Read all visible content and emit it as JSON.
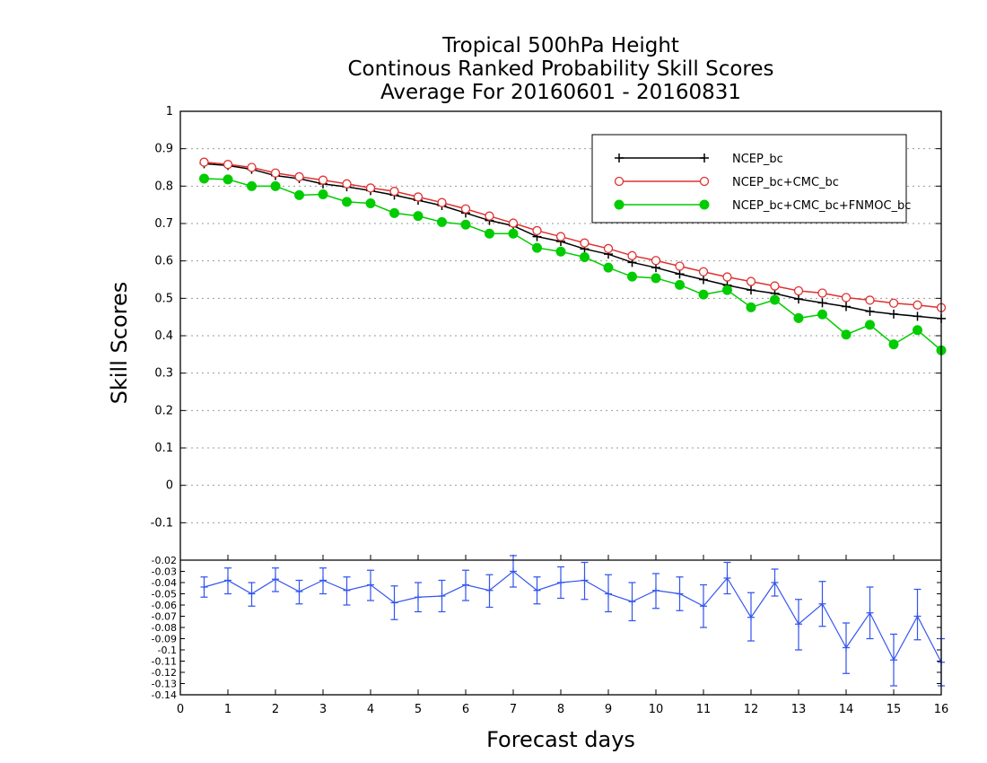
{
  "title_lines": [
    "Tropical 500hPa Height",
    "Continous Ranked Probability Skill Scores",
    "Average For 20160601 - 20160831"
  ],
  "colors": {
    "ncep": "#000000",
    "ncep_cmc": "#e03030",
    "ncep_cmc_fnmoc": "#00cc00",
    "difference": "#3355ee",
    "grid": "#999999"
  },
  "chart_data": [
    {
      "type": "line",
      "title": "Tropical 500hPa Height / Continous Ranked Probability Skill Scores / Average For 20160601 - 20160831",
      "ylabel": "Skill Scores",
      "xlabel": "",
      "xlim": [
        0,
        16
      ],
      "ylim": [
        -0.2,
        1.0
      ],
      "yticks": [
        "1",
        "0.9",
        "0.8",
        "0.7",
        "0.6",
        "0.5",
        "0.4",
        "0.3",
        "0.2",
        "0.1",
        "0",
        "-0.1"
      ],
      "grid": true,
      "legend_position": "top-right",
      "x": [
        0.5,
        1,
        1.5,
        2,
        2.5,
        3,
        3.5,
        4,
        4.5,
        5,
        5.5,
        6,
        6.5,
        7,
        7.5,
        8,
        8.5,
        9,
        9.5,
        10,
        10.5,
        11,
        11.5,
        12,
        12.5,
        13,
        13.5,
        14,
        14.5,
        15,
        15.5,
        16
      ],
      "series": [
        {
          "name": "NCEP_bc",
          "marker": "plus",
          "values": [
            0.86,
            0.855,
            0.845,
            0.828,
            0.82,
            0.806,
            0.798,
            0.788,
            0.776,
            0.762,
            0.748,
            0.728,
            0.708,
            0.694,
            0.665,
            0.652,
            0.632,
            0.618,
            0.596,
            0.582,
            0.565,
            0.55,
            0.535,
            0.522,
            0.513,
            0.498,
            0.488,
            0.478,
            0.465,
            0.458,
            0.452,
            0.446
          ]
        },
        {
          "name": "NCEP_bc+CMC_bc",
          "marker": "open-circle",
          "values": [
            0.864,
            0.858,
            0.85,
            0.835,
            0.825,
            0.816,
            0.806,
            0.795,
            0.786,
            0.771,
            0.756,
            0.739,
            0.72,
            0.701,
            0.681,
            0.665,
            0.648,
            0.633,
            0.614,
            0.601,
            0.586,
            0.571,
            0.557,
            0.545,
            0.533,
            0.52,
            0.514,
            0.502,
            0.495,
            0.487,
            0.482,
            0.475
          ]
        },
        {
          "name": "NCEP_bc+CMC_bc+FNMOC_bc",
          "marker": "filled-circle",
          "values": [
            0.82,
            0.818,
            0.8,
            0.8,
            0.776,
            0.778,
            0.758,
            0.754,
            0.728,
            0.72,
            0.704,
            0.697,
            0.673,
            0.673,
            0.635,
            0.625,
            0.61,
            0.582,
            0.558,
            0.554,
            0.536,
            0.51,
            0.522,
            0.476,
            0.496,
            0.447,
            0.457,
            0.403,
            0.429,
            0.377,
            0.415,
            0.361
          ]
        }
      ]
    },
    {
      "type": "line",
      "title": "",
      "xlabel": "Forecast days",
      "ylabel": "",
      "xlim": [
        0,
        16
      ],
      "ylim": [
        -0.14,
        -0.02
      ],
      "xticks": [
        "0",
        "1",
        "2",
        "3",
        "4",
        "5",
        "6",
        "7",
        "8",
        "9",
        "10",
        "11",
        "12",
        "13",
        "14",
        "15",
        "16"
      ],
      "yticks": [
        "-0.02",
        "-0.03",
        "-0.04",
        "-0.05",
        "-0.06",
        "-0.07",
        "-0.08",
        "-0.09",
        "-0.1",
        "-0.11",
        "-0.12",
        "-0.13",
        "-0.14"
      ],
      "grid": false,
      "x": [
        0.5,
        1,
        1.5,
        2,
        2.5,
        3,
        3.5,
        4,
        4.5,
        5,
        5.5,
        6,
        6.5,
        7,
        7.5,
        8,
        8.5,
        9,
        9.5,
        10,
        10.5,
        11,
        11.5,
        12,
        12.5,
        13,
        13.5,
        14,
        14.5,
        15,
        15.5,
        16
      ],
      "series": [
        {
          "values": [
            -0.044,
            -0.038,
            -0.05,
            -0.037,
            -0.048,
            -0.038,
            -0.047,
            -0.042,
            -0.058,
            -0.053,
            -0.052,
            -0.042,
            -0.047,
            -0.03,
            -0.047,
            -0.04,
            -0.038,
            -0.05,
            -0.057,
            -0.047,
            -0.05,
            -0.061,
            -0.036,
            -0.071,
            -0.04,
            -0.077,
            -0.059,
            -0.098,
            -0.067,
            -0.109,
            -0.07,
            -0.111
          ],
          "error_low": [
            -0.053,
            -0.05,
            -0.061,
            -0.048,
            -0.059,
            -0.05,
            -0.06,
            -0.056,
            -0.073,
            -0.066,
            -0.066,
            -0.056,
            -0.062,
            -0.044,
            -0.059,
            -0.054,
            -0.055,
            -0.066,
            -0.074,
            -0.063,
            -0.065,
            -0.08,
            -0.05,
            -0.092,
            -0.052,
            -0.1,
            -0.079,
            -0.121,
            -0.09,
            -0.132,
            -0.091,
            -0.132
          ],
          "error_high": [
            -0.035,
            -0.027,
            -0.04,
            -0.027,
            -0.038,
            -0.027,
            -0.035,
            -0.029,
            -0.043,
            -0.04,
            -0.038,
            -0.029,
            -0.033,
            -0.016,
            -0.035,
            -0.026,
            -0.022,
            -0.033,
            -0.04,
            -0.032,
            -0.035,
            -0.042,
            -0.022,
            -0.049,
            -0.028,
            -0.055,
            -0.039,
            -0.076,
            -0.044,
            -0.086,
            -0.046,
            -0.09
          ]
        }
      ]
    }
  ]
}
